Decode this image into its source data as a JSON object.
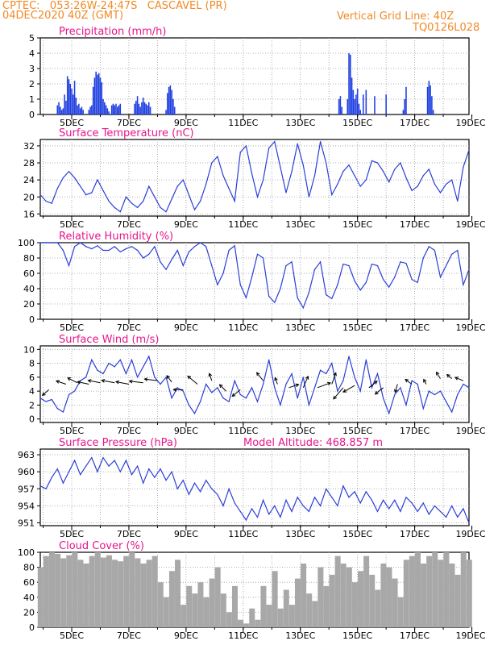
{
  "header": {
    "line1": "CPTEC:   053:26W-24:47S   CASCAVEL (PR)",
    "line2": "04DEC2020 40Z (GMT)",
    "right1": "Vertical Grid Line: 40Z",
    "right2": "TQ0126L028"
  },
  "colors": {
    "header": "#f08a24",
    "title": "#e6168c",
    "line": "#2a3fd6",
    "bar": "#1f3fe0",
    "cloud": "#a8a8a8",
    "grid": "#9a9a9a"
  },
  "x_ticks": [
    "5DEC",
    "7DEC",
    "9DEC",
    "11DEC",
    "13DEC",
    "15DEC",
    "17DEC",
    "19DEC"
  ],
  "chart_data": [
    {
      "id": "precip",
      "type": "bar",
      "title": "Precipitation (mm/h)",
      "x_range_days": [
        4.0,
        19.0
      ],
      "ylim": [
        0,
        5
      ],
      "yticks": [
        0,
        1,
        2,
        3,
        4,
        5
      ],
      "x": [
        4.6,
        4.65,
        4.7,
        4.75,
        4.8,
        4.85,
        4.9,
        4.95,
        5.0,
        5.05,
        5.1,
        5.15,
        5.2,
        5.25,
        5.3,
        5.35,
        5.4,
        5.45,
        5.5,
        5.7,
        5.75,
        5.8,
        5.85,
        5.9,
        5.95,
        6.0,
        6.05,
        6.1,
        6.15,
        6.2,
        6.25,
        6.3,
        6.35,
        6.4,
        6.5,
        6.55,
        6.6,
        6.65,
        6.7,
        6.75,
        6.8,
        7.3,
        7.35,
        7.4,
        7.45,
        7.5,
        7.55,
        7.6,
        7.65,
        7.7,
        7.75,
        7.8,
        7.85,
        8.4,
        8.45,
        8.5,
        8.55,
        8.6,
        8.65,
        8.7,
        14.45,
        14.5,
        14.55,
        14.75,
        14.8,
        14.85,
        14.9,
        14.95,
        15.0,
        15.05,
        15.1,
        15.15,
        15.2,
        15.3,
        15.4,
        15.7,
        16.1,
        16.7,
        16.75,
        16.8,
        17.55,
        17.6,
        17.65,
        17.7,
        17.75
      ],
      "values": [
        0.6,
        0.8,
        0.5,
        0.3,
        0.4,
        1.3,
        0.9,
        2.5,
        2.3,
        2.0,
        1.7,
        1.3,
        2.2,
        1.1,
        0.6,
        0.7,
        0.4,
        0.5,
        0.3,
        0.3,
        0.5,
        0.6,
        1.8,
        2.4,
        2.8,
        2.6,
        2.7,
        2.4,
        2.1,
        1.0,
        0.8,
        0.6,
        0.4,
        0.2,
        0.6,
        0.7,
        0.6,
        0.7,
        0.5,
        0.6,
        0.7,
        0.7,
        0.9,
        1.2,
        0.7,
        0.5,
        0.8,
        1.1,
        0.8,
        0.7,
        0.6,
        0.8,
        0.5,
        0.3,
        1.4,
        1.8,
        1.9,
        1.6,
        1.0,
        0.5,
        1.0,
        1.2,
        0.5,
        1.0,
        4.0,
        3.9,
        2.4,
        1.6,
        1.0,
        1.3,
        1.7,
        0.7,
        0.3,
        1.3,
        1.6,
        1.2,
        1.3,
        0.3,
        1.0,
        1.8,
        1.8,
        2.2,
        1.9,
        1.2,
        0.3
      ]
    },
    {
      "id": "temp",
      "type": "line",
      "title": "Surface Temperature (nC)",
      "x_range_days": [
        4.0,
        19.0
      ],
      "ylim": [
        15.5,
        33.5
      ],
      "yticks": [
        16,
        20,
        24,
        28,
        32
      ],
      "x": [
        4.0,
        4.2,
        4.4,
        4.6,
        4.8,
        5.0,
        5.2,
        5.4,
        5.6,
        5.8,
        6.0,
        6.2,
        6.4,
        6.6,
        6.8,
        7.0,
        7.2,
        7.4,
        7.6,
        7.8,
        8.0,
        8.2,
        8.4,
        8.6,
        8.8,
        9.0,
        9.2,
        9.4,
        9.6,
        9.8,
        10.0,
        10.2,
        10.4,
        10.6,
        10.8,
        11.0,
        11.2,
        11.4,
        11.6,
        11.8,
        12.0,
        12.2,
        12.4,
        12.6,
        12.8,
        13.0,
        13.2,
        13.4,
        13.6,
        13.8,
        14.0,
        14.2,
        14.4,
        14.6,
        14.8,
        15.0,
        15.2,
        15.4,
        15.6,
        15.8,
        16.0,
        16.2,
        16.4,
        16.6,
        16.8,
        17.0,
        17.2,
        17.4,
        17.6,
        17.8,
        18.0,
        18.2,
        18.4,
        18.6,
        18.8,
        19.0
      ],
      "values": [
        20.5,
        19.0,
        18.5,
        22.0,
        24.5,
        26.0,
        24.5,
        22.5,
        20.5,
        21.0,
        24.0,
        21.5,
        19.0,
        17.5,
        16.5,
        20.0,
        18.5,
        17.5,
        19.0,
        22.5,
        20.0,
        17.5,
        16.5,
        19.5,
        22.5,
        24.0,
        20.5,
        17.0,
        19.0,
        23.0,
        28.0,
        29.5,
        25.0,
        22.0,
        19.0,
        30.5,
        32.0,
        25.5,
        20.0,
        24.0,
        31.5,
        33.0,
        27.0,
        21.0,
        26.0,
        32.5,
        27.5,
        20.0,
        25.0,
        33.0,
        28.0,
        20.5,
        23.0,
        26.0,
        27.5,
        25.0,
        22.5,
        24.0,
        28.5,
        28.0,
        26.0,
        23.5,
        26.5,
        28.0,
        24.5,
        21.5,
        22.5,
        25.0,
        26.5,
        23.0,
        21.0,
        23.0,
        24.0,
        19.0,
        27.0,
        31.0
      ]
    },
    {
      "id": "rh",
      "type": "line",
      "title": "Relative Humidity (%)",
      "x_range_days": [
        4.0,
        19.0
      ],
      "ylim": [
        0,
        100
      ],
      "yticks": [
        0,
        20,
        40,
        60,
        80,
        100
      ],
      "x": [
        4.0,
        4.2,
        4.4,
        4.6,
        4.8,
        5.0,
        5.2,
        5.4,
        5.6,
        5.8,
        6.0,
        6.2,
        6.4,
        6.6,
        6.8,
        7.0,
        7.2,
        7.4,
        7.6,
        7.8,
        8.0,
        8.2,
        8.4,
        8.6,
        8.8,
        9.0,
        9.2,
        9.4,
        9.6,
        9.8,
        10.0,
        10.2,
        10.4,
        10.6,
        10.8,
        11.0,
        11.2,
        11.4,
        11.6,
        11.8,
        12.0,
        12.2,
        12.4,
        12.6,
        12.8,
        13.0,
        13.2,
        13.4,
        13.6,
        13.8,
        14.0,
        14.2,
        14.4,
        14.6,
        14.8,
        15.0,
        15.2,
        15.4,
        15.6,
        15.8,
        16.0,
        16.2,
        16.4,
        16.6,
        16.8,
        17.0,
        17.2,
        17.4,
        17.6,
        17.8,
        18.0,
        18.2,
        18.4,
        18.6,
        18.8,
        19.0
      ],
      "values": [
        100,
        100,
        100,
        100,
        90,
        70,
        95,
        100,
        95,
        92,
        96,
        90,
        90,
        95,
        88,
        92,
        95,
        90,
        80,
        85,
        95,
        75,
        65,
        78,
        90,
        70,
        88,
        95,
        100,
        95,
        70,
        45,
        60,
        90,
        96,
        45,
        28,
        55,
        85,
        80,
        30,
        22,
        40,
        70,
        75,
        28,
        15,
        35,
        65,
        75,
        32,
        27,
        45,
        72,
        70,
        50,
        38,
        48,
        72,
        70,
        52,
        42,
        55,
        75,
        73,
        52,
        48,
        80,
        95,
        90,
        55,
        70,
        85,
        90,
        45,
        65
      ]
    },
    {
      "id": "wind",
      "type": "line",
      "title": "Surface Wind (m/s)",
      "x_range_days": [
        4.0,
        19.0
      ],
      "ylim": [
        -0.5,
        10.5
      ],
      "yticks": [
        0,
        2,
        4,
        6,
        8,
        10
      ],
      "x": [
        4.0,
        4.2,
        4.4,
        4.6,
        4.8,
        5.0,
        5.2,
        5.4,
        5.6,
        5.8,
        6.0,
        6.2,
        6.4,
        6.6,
        6.8,
        7.0,
        7.2,
        7.4,
        7.6,
        7.8,
        8.0,
        8.2,
        8.4,
        8.6,
        8.8,
        9.0,
        9.2,
        9.4,
        9.6,
        9.8,
        10.0,
        10.2,
        10.4,
        10.6,
        10.8,
        11.0,
        11.2,
        11.4,
        11.6,
        11.8,
        12.0,
        12.2,
        12.4,
        12.6,
        12.8,
        13.0,
        13.2,
        13.4,
        13.6,
        13.8,
        14.0,
        14.2,
        14.4,
        14.6,
        14.8,
        15.0,
        15.2,
        15.4,
        15.6,
        15.8,
        16.0,
        16.2,
        16.4,
        16.6,
        16.8,
        17.0,
        17.2,
        17.4,
        17.6,
        17.8,
        18.0,
        18.2,
        18.4,
        18.6,
        18.8,
        19.0
      ],
      "values": [
        3.0,
        2.5,
        2.8,
        1.5,
        1.0,
        3.5,
        4.0,
        5.5,
        6.0,
        8.5,
        7.0,
        6.5,
        8.0,
        7.5,
        8.5,
        6.5,
        8.5,
        6.0,
        7.5,
        9.0,
        6.0,
        5.0,
        6.0,
        3.0,
        4.5,
        4.0,
        2.0,
        0.8,
        2.5,
        5.0,
        3.8,
        4.5,
        3.0,
        2.5,
        5.5,
        3.5,
        3.0,
        4.5,
        2.5,
        5.0,
        8.5,
        4.5,
        2.0,
        5.0,
        6.5,
        3.0,
        6.0,
        2.0,
        4.5,
        7.0,
        6.5,
        8.0,
        4.0,
        5.5,
        9.0,
        6.0,
        4.0,
        8.5,
        4.5,
        6.5,
        3.0,
        0.8,
        3.5,
        4.5,
        2.0,
        5.5,
        5.0,
        1.5,
        4.0,
        3.5,
        4.0,
        2.5,
        1.0,
        3.5,
        5.0,
        4.5
      ],
      "arrows": [
        {
          "x": 4.3,
          "y": 4.2,
          "dx": -8,
          "dy": 7
        },
        {
          "x": 4.9,
          "y": 5.0,
          "dx": -12,
          "dy": -4
        },
        {
          "x": 5.3,
          "y": 5.2,
          "dx": -12,
          "dy": -6
        },
        {
          "x": 5.7,
          "y": 5.0,
          "dx": -14,
          "dy": -3
        },
        {
          "x": 6.1,
          "y": 5.2,
          "dx": -15,
          "dy": -3
        },
        {
          "x": 6.6,
          "y": 5.2,
          "dx": -16,
          "dy": -3
        },
        {
          "x": 7.1,
          "y": 5.0,
          "dx": -16,
          "dy": -3
        },
        {
          "x": 7.6,
          "y": 5.2,
          "dx": -17,
          "dy": -2
        },
        {
          "x": 8.1,
          "y": 5.5,
          "dx": -16,
          "dy": -2
        },
        {
          "x": 8.6,
          "y": 5.3,
          "dx": -6,
          "dy": -8
        },
        {
          "x": 9.0,
          "y": 4.2,
          "dx": -12,
          "dy": 0
        },
        {
          "x": 9.5,
          "y": 5.0,
          "dx": -12,
          "dy": -10
        },
        {
          "x": 10.0,
          "y": 5.5,
          "dx": -3,
          "dy": -9
        },
        {
          "x": 10.5,
          "y": 4.0,
          "dx": -8,
          "dy": -8
        },
        {
          "x": 11.0,
          "y": 4.2,
          "dx": -10,
          "dy": 8
        },
        {
          "x": 11.8,
          "y": 5.5,
          "dx": -8,
          "dy": -10
        },
        {
          "x": 12.3,
          "y": 5.0,
          "dx": -3,
          "dy": -8
        },
        {
          "x": 12.7,
          "y": 4.5,
          "dx": 12,
          "dy": -4
        },
        {
          "x": 13.2,
          "y": 4.5,
          "dx": 6,
          "dy": -14
        },
        {
          "x": 13.7,
          "y": 4.5,
          "dx": 16,
          "dy": -6
        },
        {
          "x": 14.2,
          "y": 5.0,
          "dx": 5,
          "dy": -14
        },
        {
          "x": 14.6,
          "y": 4.5,
          "dx": -12,
          "dy": 14
        },
        {
          "x": 15.0,
          "y": 4.8,
          "dx": -14,
          "dy": 8
        },
        {
          "x": 15.5,
          "y": 4.5,
          "dx": 10,
          "dy": -8
        },
        {
          "x": 16.0,
          "y": 4.5,
          "dx": -10,
          "dy": 8
        },
        {
          "x": 16.5,
          "y": 5.0,
          "dx": -3,
          "dy": 10
        },
        {
          "x": 17.0,
          "y": 5.0,
          "dx": -8,
          "dy": -6
        },
        {
          "x": 17.5,
          "y": 5.0,
          "dx": -3,
          "dy": -6
        },
        {
          "x": 18.0,
          "y": 5.8,
          "dx": -5,
          "dy": -8
        },
        {
          "x": 18.4,
          "y": 5.8,
          "dx": -6,
          "dy": -5
        },
        {
          "x": 18.8,
          "y": 5.5,
          "dx": -10,
          "dy": -4
        }
      ]
    },
    {
      "id": "pressure",
      "type": "line",
      "title": "Surface Pressure (hPa)",
      "annotation": "Model Altitude: 468.857 m",
      "x_range_days": [
        4.0,
        19.0
      ],
      "ylim": [
        950.5,
        964
      ],
      "yticks": [
        951,
        954,
        957,
        960,
        963
      ],
      "yticklabels": [
        "951",
        "954",
        "957",
        "960",
        "963"
      ],
      "x": [
        4.0,
        4.2,
        4.4,
        4.6,
        4.8,
        5.0,
        5.2,
        5.4,
        5.6,
        5.8,
        6.0,
        6.2,
        6.4,
        6.6,
        6.8,
        7.0,
        7.2,
        7.4,
        7.6,
        7.8,
        8.0,
        8.2,
        8.4,
        8.6,
        8.8,
        9.0,
        9.2,
        9.4,
        9.6,
        9.8,
        10.0,
        10.2,
        10.4,
        10.6,
        10.8,
        11.0,
        11.2,
        11.4,
        11.6,
        11.8,
        12.0,
        12.2,
        12.4,
        12.6,
        12.8,
        13.0,
        13.2,
        13.4,
        13.6,
        13.8,
        14.0,
        14.2,
        14.4,
        14.6,
        14.8,
        15.0,
        15.2,
        15.4,
        15.6,
        15.8,
        16.0,
        16.2,
        16.4,
        16.6,
        16.8,
        17.0,
        17.2,
        17.4,
        17.6,
        17.8,
        18.0,
        18.2,
        18.4,
        18.6,
        18.8,
        19.0
      ],
      "values": [
        957.5,
        957.0,
        959.0,
        960.5,
        958.0,
        960.0,
        962.0,
        959.5,
        961.0,
        962.5,
        960.0,
        962.5,
        961.0,
        962.0,
        960.0,
        962.0,
        959.5,
        961.0,
        958.0,
        960.5,
        959.0,
        960.5,
        958.5,
        960.0,
        957.0,
        958.5,
        956.0,
        958.0,
        956.5,
        958.5,
        957.0,
        956.0,
        954.0,
        957.0,
        954.5,
        953.0,
        951.5,
        953.5,
        952.0,
        955.0,
        952.5,
        954.0,
        952.0,
        955.0,
        953.0,
        955.5,
        954.0,
        953.0,
        955.5,
        954.0,
        957.0,
        955.5,
        954.0,
        957.5,
        955.5,
        956.5,
        954.5,
        956.5,
        955.0,
        953.0,
        955.0,
        953.5,
        955.0,
        953.0,
        955.5,
        954.5,
        953.0,
        954.5,
        952.5,
        954.0,
        953.0,
        952.0,
        954.0,
        952.0,
        953.5,
        951.0
      ]
    },
    {
      "id": "cloud",
      "type": "area",
      "title": "Cloud Cover (%)",
      "x_range_days": [
        4.0,
        19.0
      ],
      "ylim": [
        0,
        100
      ],
      "yticks": [
        0,
        20,
        40,
        60,
        80,
        100
      ],
      "x": [
        4.0,
        4.2,
        4.4,
        4.6,
        4.8,
        5.0,
        5.2,
        5.4,
        5.6,
        5.8,
        6.0,
        6.2,
        6.4,
        6.6,
        6.8,
        7.0,
        7.2,
        7.4,
        7.6,
        7.8,
        8.0,
        8.2,
        8.4,
        8.6,
        8.8,
        9.0,
        9.2,
        9.4,
        9.6,
        9.8,
        10.0,
        10.2,
        10.4,
        10.6,
        10.8,
        11.0,
        11.2,
        11.4,
        11.6,
        11.8,
        12.0,
        12.2,
        12.4,
        12.6,
        12.8,
        13.0,
        13.2,
        13.4,
        13.6,
        13.8,
        14.0,
        14.2,
        14.4,
        14.6,
        14.8,
        15.0,
        15.2,
        15.4,
        15.6,
        15.8,
        16.0,
        16.2,
        16.4,
        16.6,
        16.8,
        17.0,
        17.2,
        17.4,
        17.6,
        17.8,
        18.0,
        18.2,
        18.4,
        18.6,
        18.8,
        19.0
      ],
      "values": [
        80,
        95,
        100,
        98,
        92,
        96,
        100,
        90,
        85,
        95,
        100,
        93,
        96,
        90,
        88,
        95,
        100,
        92,
        85,
        90,
        95,
        60,
        40,
        75,
        90,
        30,
        55,
        45,
        60,
        40,
        65,
        80,
        45,
        20,
        55,
        10,
        5,
        25,
        10,
        55,
        30,
        75,
        25,
        50,
        30,
        65,
        85,
        45,
        35,
        80,
        55,
        70,
        95,
        85,
        80,
        60,
        75,
        95,
        70,
        50,
        85,
        80,
        65,
        40,
        90,
        95,
        100,
        85,
        95,
        100,
        90,
        100,
        85,
        70,
        100,
        90
      ]
    }
  ]
}
